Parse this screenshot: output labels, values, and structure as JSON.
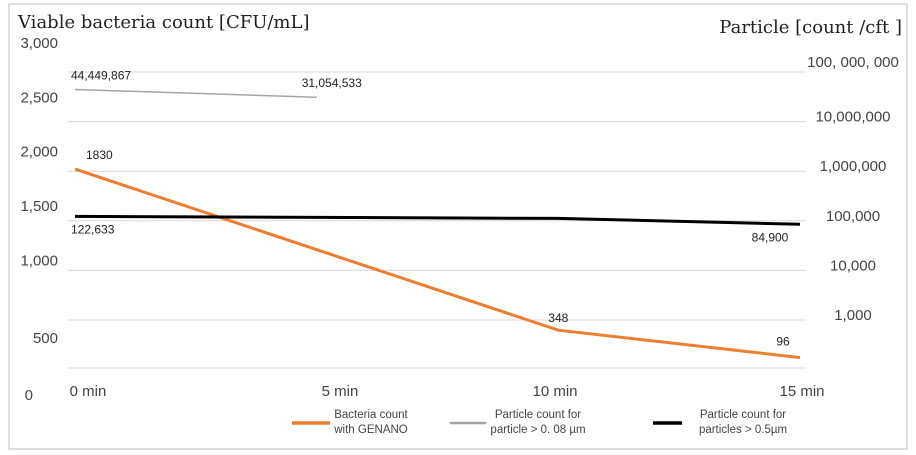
{
  "chart_data": {
    "type": "line",
    "left_axis_title": "Viable bacteria count [CFU/mL]",
    "right_axis_title": "Particle [count /cft ]",
    "left_ticks": [
      "3,000",
      "2,500",
      "2,000",
      "1,500",
      "1,000",
      "500",
      "0"
    ],
    "left_tick_values": [
      3000,
      2500,
      2000,
      1500,
      1000,
      500,
      0
    ],
    "right_ticks": [
      "100, 000, 000",
      "10,000,000",
      "1,000,000",
      "100,000",
      "10,000",
      "1,000"
    ],
    "right_tick_values": [
      100000000,
      10000000,
      1000000,
      100000,
      10000,
      1000
    ],
    "right_scale": "log",
    "categories": [
      "0 min",
      "5 min",
      "10 min",
      "15 min"
    ],
    "grid": true,
    "series": [
      {
        "name": "Bacteria count with GENANO",
        "name_lines": [
          "Bacteria count",
          "with GENANO"
        ],
        "axis": "left",
        "color": "#ED7D31",
        "x": [
          0,
          10,
          15
        ],
        "values": [
          1830,
          348,
          96
        ],
        "labels": [
          "1830",
          "348",
          "96"
        ]
      },
      {
        "name": "Particle count for particle > 0. 08 µm",
        "name_lines": [
          "Particle count for",
          "particle > 0. 08 µm"
        ],
        "axis": "right",
        "color": "#A5A5A5",
        "x": [
          0,
          5
        ],
        "values": [
          44449867,
          31054533
        ],
        "labels": [
          "44,449,867",
          "31,054,533"
        ]
      },
      {
        "name": "Particle count for particles > 0.5µm",
        "name_lines": [
          "Particle count  for",
          "particles > 0.5µm"
        ],
        "axis": "right",
        "color": "#000000",
        "x": [
          0,
          10,
          15
        ],
        "values": [
          122633,
          112000,
          84900
        ],
        "labels": [
          "122,633",
          "",
          "84,900"
        ]
      }
    ]
  }
}
